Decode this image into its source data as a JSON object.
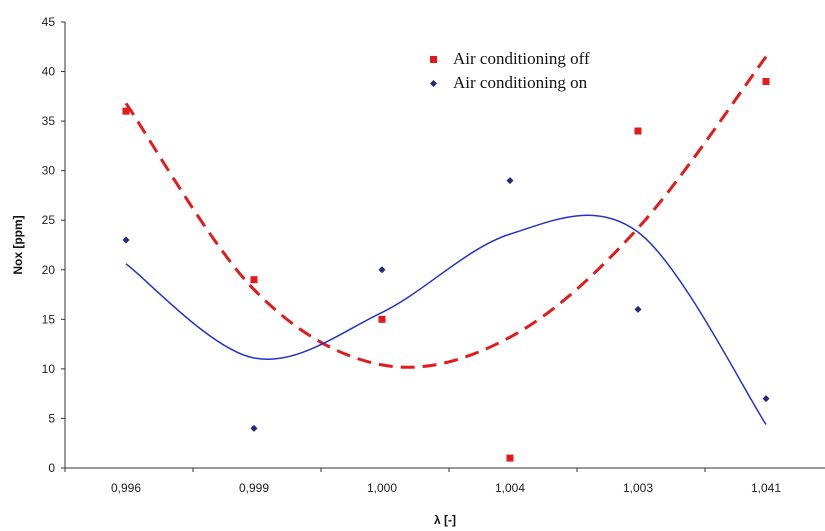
{
  "chart_data": {
    "type": "scatter",
    "categories": [
      "0,996",
      "0,999",
      "1,000",
      "1,004",
      "1,003",
      "1,041"
    ],
    "xlabel": "λ [-]",
    "ylabel": "Nox [ppm]",
    "ylim": [
      0,
      45
    ],
    "yticks": [
      0,
      5,
      10,
      15,
      20,
      25,
      30,
      35,
      40,
      45
    ],
    "grid": false,
    "legend_position": "top-right",
    "series": [
      {
        "name": "Air conditioning off",
        "marker": "square",
        "color": "#e31a1c",
        "values": [
          36,
          19,
          15,
          1,
          34,
          39
        ],
        "trendline": {
          "style": "dashed",
          "values": [
            36.8,
            18.0,
            10.4,
            13.2,
            24.2,
            41.5
          ]
        }
      },
      {
        "name": "Air conditioning on",
        "marker": "diamond",
        "color": "#1f2a7a",
        "values": [
          23,
          4,
          20,
          29,
          16,
          7
        ],
        "trendline": {
          "style": "solid",
          "color": "#2233cc",
          "values": [
            20.6,
            11.1,
            15.7,
            23.6,
            23.8,
            4.4
          ]
        }
      }
    ]
  }
}
